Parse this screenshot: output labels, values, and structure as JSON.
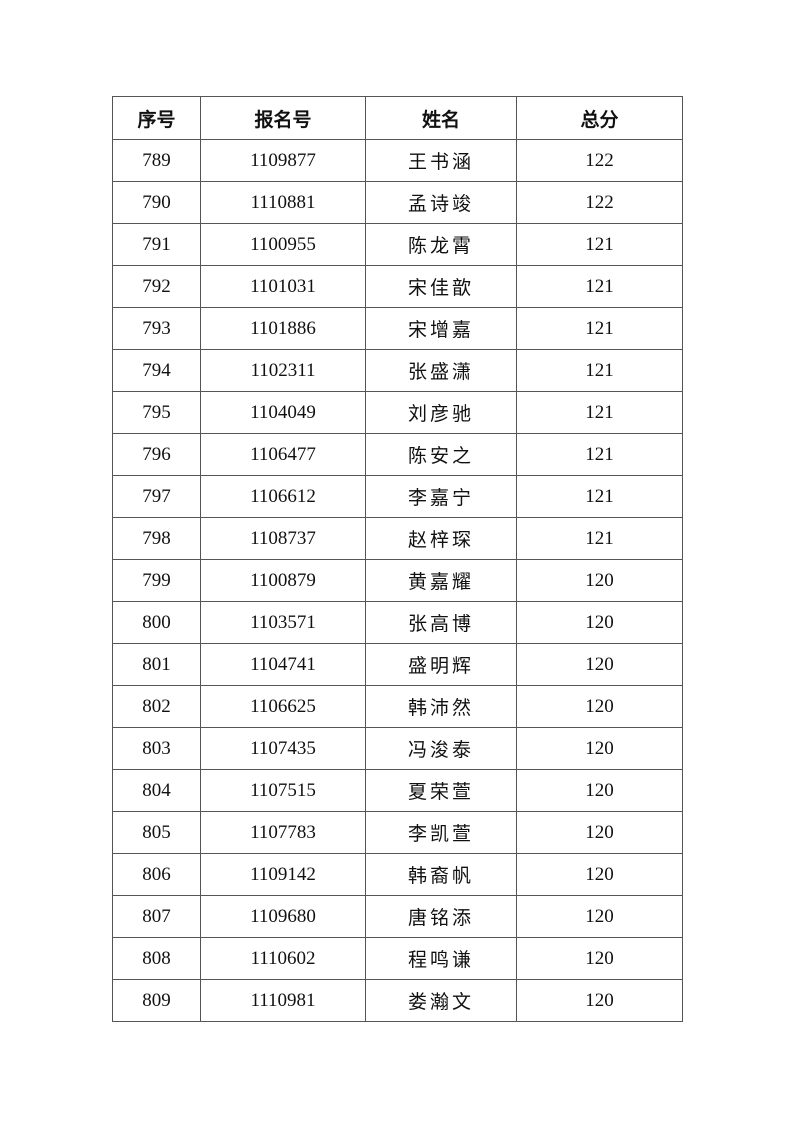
{
  "table": {
    "headers": [
      "序号",
      "报名号",
      "姓名",
      "总分"
    ],
    "rows": [
      [
        "789",
        "1109877",
        "王书涵",
        "122"
      ],
      [
        "790",
        "1110881",
        "孟诗竣",
        "122"
      ],
      [
        "791",
        "1100955",
        "陈龙霄",
        "121"
      ],
      [
        "792",
        "1101031",
        "宋佳歆",
        "121"
      ],
      [
        "793",
        "1101886",
        "宋增嘉",
        "121"
      ],
      [
        "794",
        "1102311",
        "张盛潇",
        "121"
      ],
      [
        "795",
        "1104049",
        "刘彦驰",
        "121"
      ],
      [
        "796",
        "1106477",
        "陈安之",
        "121"
      ],
      [
        "797",
        "1106612",
        "李嘉宁",
        "121"
      ],
      [
        "798",
        "1108737",
        "赵梓琛",
        "121"
      ],
      [
        "799",
        "1100879",
        "黄嘉耀",
        "120"
      ],
      [
        "800",
        "1103571",
        "张高博",
        "120"
      ],
      [
        "801",
        "1104741",
        "盛明辉",
        "120"
      ],
      [
        "802",
        "1106625",
        "韩沛然",
        "120"
      ],
      [
        "803",
        "1107435",
        "冯浚泰",
        "120"
      ],
      [
        "804",
        "1107515",
        "夏荣萱",
        "120"
      ],
      [
        "805",
        "1107783",
        "李凯萱",
        "120"
      ],
      [
        "806",
        "1109142",
        "韩裔帆",
        "120"
      ],
      [
        "807",
        "1109680",
        "唐铭添",
        "120"
      ],
      [
        "808",
        "1110602",
        "程鸣谦",
        "120"
      ],
      [
        "809",
        "1110981",
        "娄瀚文",
        "120"
      ]
    ]
  }
}
